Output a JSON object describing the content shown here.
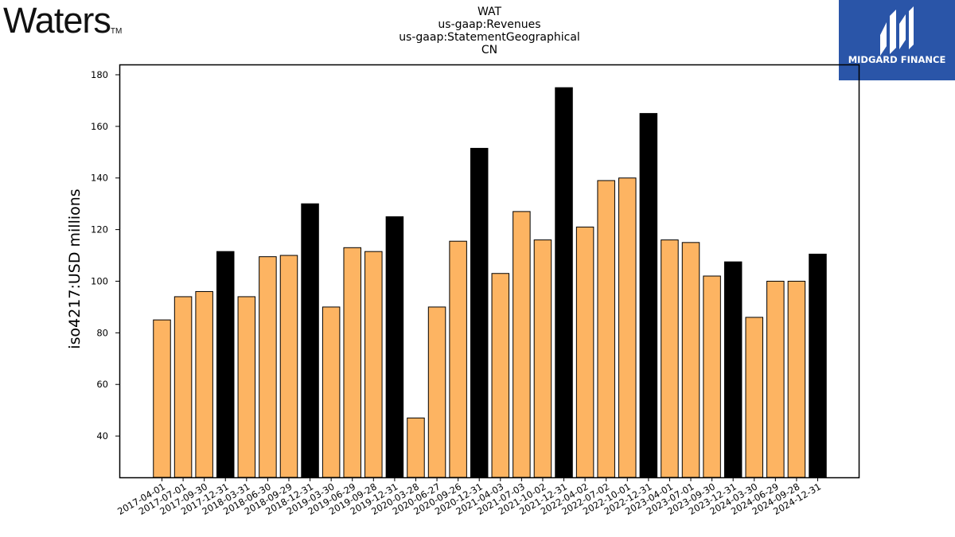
{
  "header": {
    "company_logo": "Waters",
    "trademark": "TM",
    "title_lines": [
      "WAT",
      "us-gaap:Revenues",
      "us-gaap:StatementGeographical",
      "CN"
    ],
    "brand_name": "MIDGARD FINANCE",
    "brand_icon": "midgard-logo-icon"
  },
  "colors": {
    "quarter_bar": "#fdb462",
    "annual_bar": "#000000",
    "brand_bg": "#2a55a8"
  },
  "chart_data": {
    "type": "bar",
    "ylabel": "iso4217:USD  millions",
    "ylim": [
      24,
      184
    ],
    "yticks": [
      40,
      60,
      80,
      100,
      120,
      140,
      160,
      180
    ],
    "categories": [
      "2017-04-01",
      "2017-07-01",
      "2017-09-30",
      "2017-12-31",
      "2018-03-31",
      "2018-06-30",
      "2018-09-29",
      "2018-12-31",
      "2019-03-30",
      "2019-06-29",
      "2019-09-28",
      "2019-12-31",
      "2020-03-28",
      "2020-06-27",
      "2020-09-26",
      "2020-12-31",
      "2021-04-03",
      "2021-07-03",
      "2021-10-02",
      "2021-12-31",
      "2022-04-02",
      "2022-07-02",
      "2022-10-01",
      "2022-12-31",
      "2023-04-01",
      "2023-07-01",
      "2023-09-30",
      "2023-12-31",
      "2024-03-30",
      "2024-06-29",
      "2024-09-28",
      "2024-12-31"
    ],
    "values": [
      85,
      94,
      96,
      111.5,
      94,
      109.5,
      110,
      130,
      90,
      113,
      111.5,
      125,
      47,
      90,
      115.5,
      151.5,
      103,
      127,
      116,
      175,
      121,
      139,
      140,
      165,
      116,
      115,
      102,
      107.5,
      86,
      100,
      100,
      110.5
    ],
    "annual_flags": [
      false,
      false,
      false,
      true,
      false,
      false,
      false,
      true,
      false,
      false,
      false,
      true,
      false,
      false,
      false,
      true,
      false,
      false,
      false,
      true,
      false,
      false,
      false,
      true,
      false,
      false,
      false,
      true,
      false,
      false,
      false,
      true
    ],
    "grid": false,
    "legend": "none"
  }
}
